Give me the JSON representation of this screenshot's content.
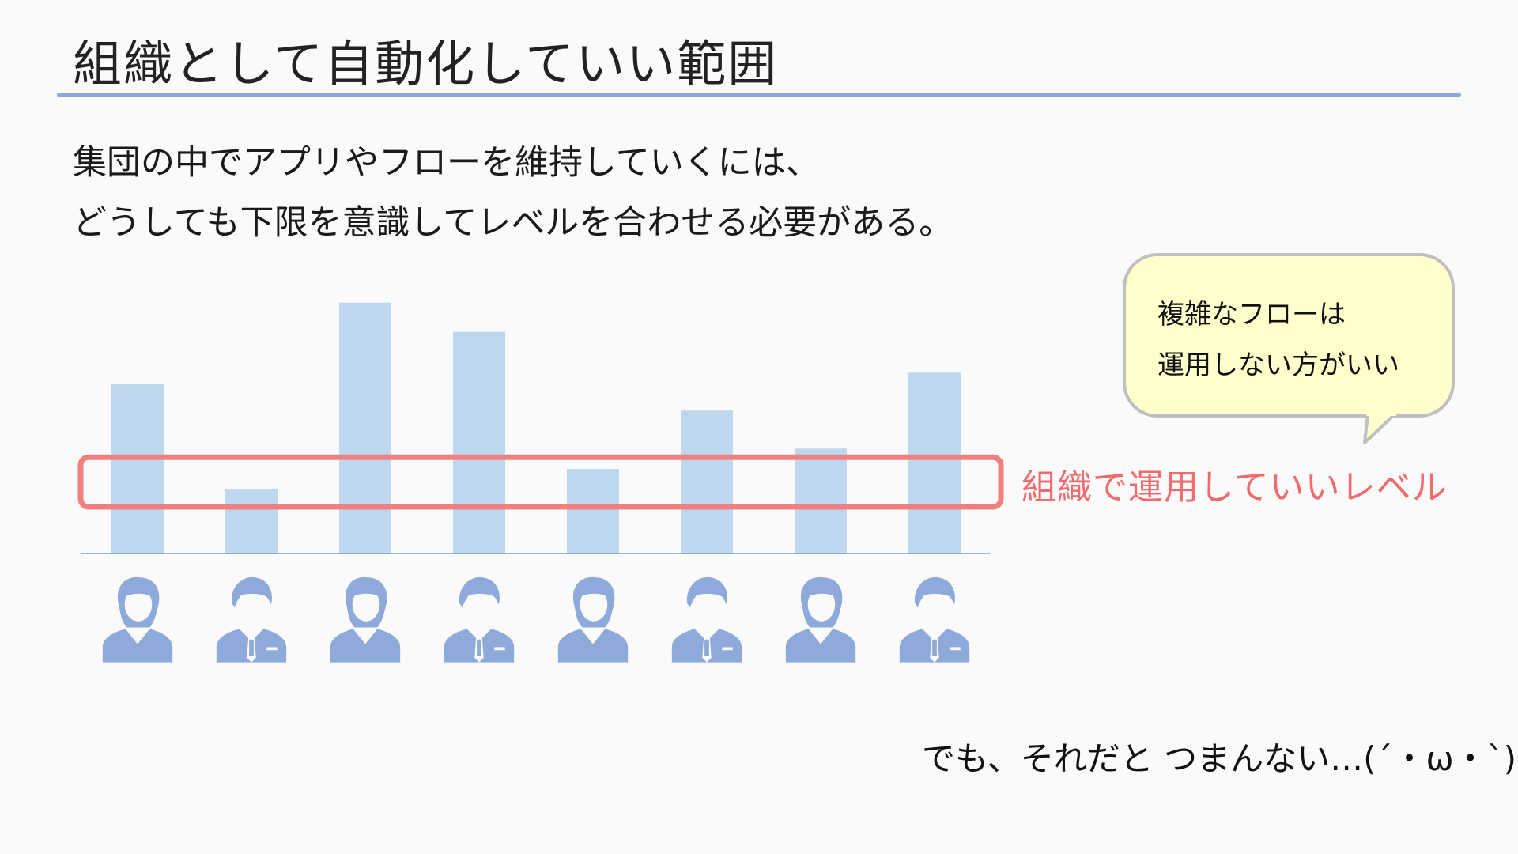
{
  "slide": {
    "title": "組織として自動化していい範囲",
    "body_lines": [
      "集団の中でアプリやフローを維持していくには、",
      "どうしても下限を意識してレベルを合わせる必要がある。"
    ],
    "level_label": "組織で運用していいレベル",
    "bubble_lines": [
      "複雑なフローは",
      "運用しない方がいい"
    ],
    "footer": "でも、それだと つまんない…(´・ω・`)"
  },
  "colors": {
    "bar": "#bdd7ee",
    "person": "#8eaadb",
    "level_box": "#f08080",
    "level_text": "#ee6b6e",
    "title_rule": "#8ea9db",
    "bubble_fill": "#ffffcc",
    "bubble_border": "#bfbfbf"
  },
  "chart_data": {
    "type": "bar",
    "values": [
      58,
      22,
      86,
      76,
      29,
      49,
      36,
      62
    ],
    "ylim": [
      0,
      90
    ],
    "level_band": [
      16,
      33
    ],
    "people": [
      "woman",
      "man",
      "woman",
      "man",
      "woman",
      "man",
      "woman",
      "man"
    ],
    "icon_names": [
      "woman-icon",
      "man-icon"
    ]
  }
}
